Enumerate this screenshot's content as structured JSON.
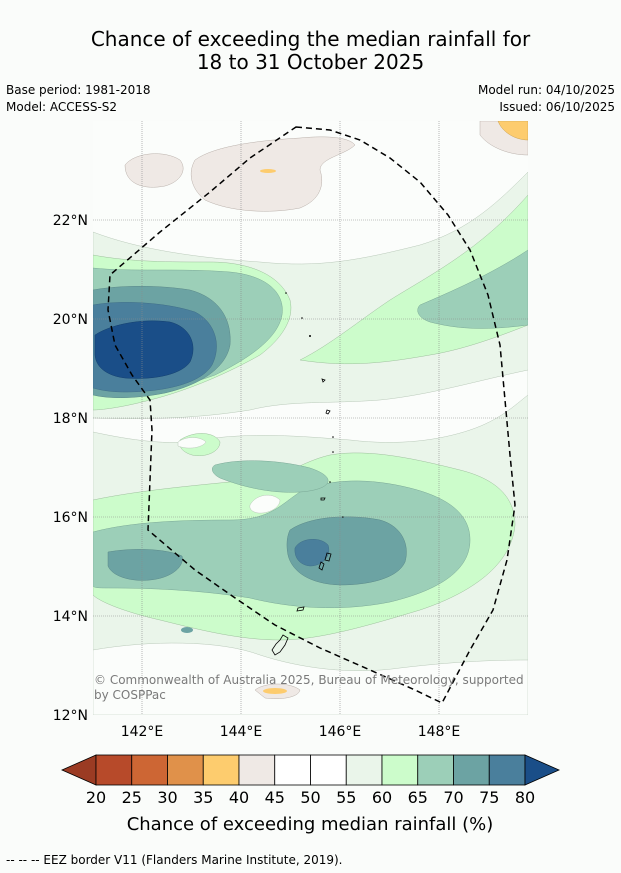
{
  "title": {
    "line1": "Chance of exceeding the median rainfall for",
    "line2": "18 to 31 October 2025"
  },
  "meta": {
    "base_period": "Base period: 1981-2018",
    "model": "Model: ACCESS-S2",
    "model_run": "Model run: 04/10/2025",
    "issued": "Issued: 06/10/2025"
  },
  "map": {
    "lat_ticks": [
      "12°N",
      "14°N",
      "16°N",
      "18°N",
      "20°N",
      "22°N"
    ],
    "lon_ticks": [
      "142°E",
      "144°E",
      "146°E",
      "148°E"
    ],
    "credit_line1": "© Commonwealth of Australia 2025, Bureau of Meteorology, supported",
    "credit_line2": "by COSPPac"
  },
  "colorbar": {
    "labels": [
      "20",
      "25",
      "30",
      "35",
      "40",
      "45",
      "50",
      "55",
      "60",
      "65",
      "70",
      "75",
      "80"
    ],
    "title": "Chance of exceeding median rainfall (%)",
    "colors": [
      "#9b3b23",
      "#b74a2a",
      "#cd6634",
      "#e0914a",
      "#fdcc6e",
      "#efe9e5",
      "#ffffff",
      "#ffffff",
      "#eaf5ea",
      "#ccfccb",
      "#9ccfb8",
      "#6ca3a3",
      "#4a7f9c",
      "#1a4e88"
    ]
  },
  "footer": "--  --  -- EEZ border V11 (Flanders Marine Institute, 2019)."
}
